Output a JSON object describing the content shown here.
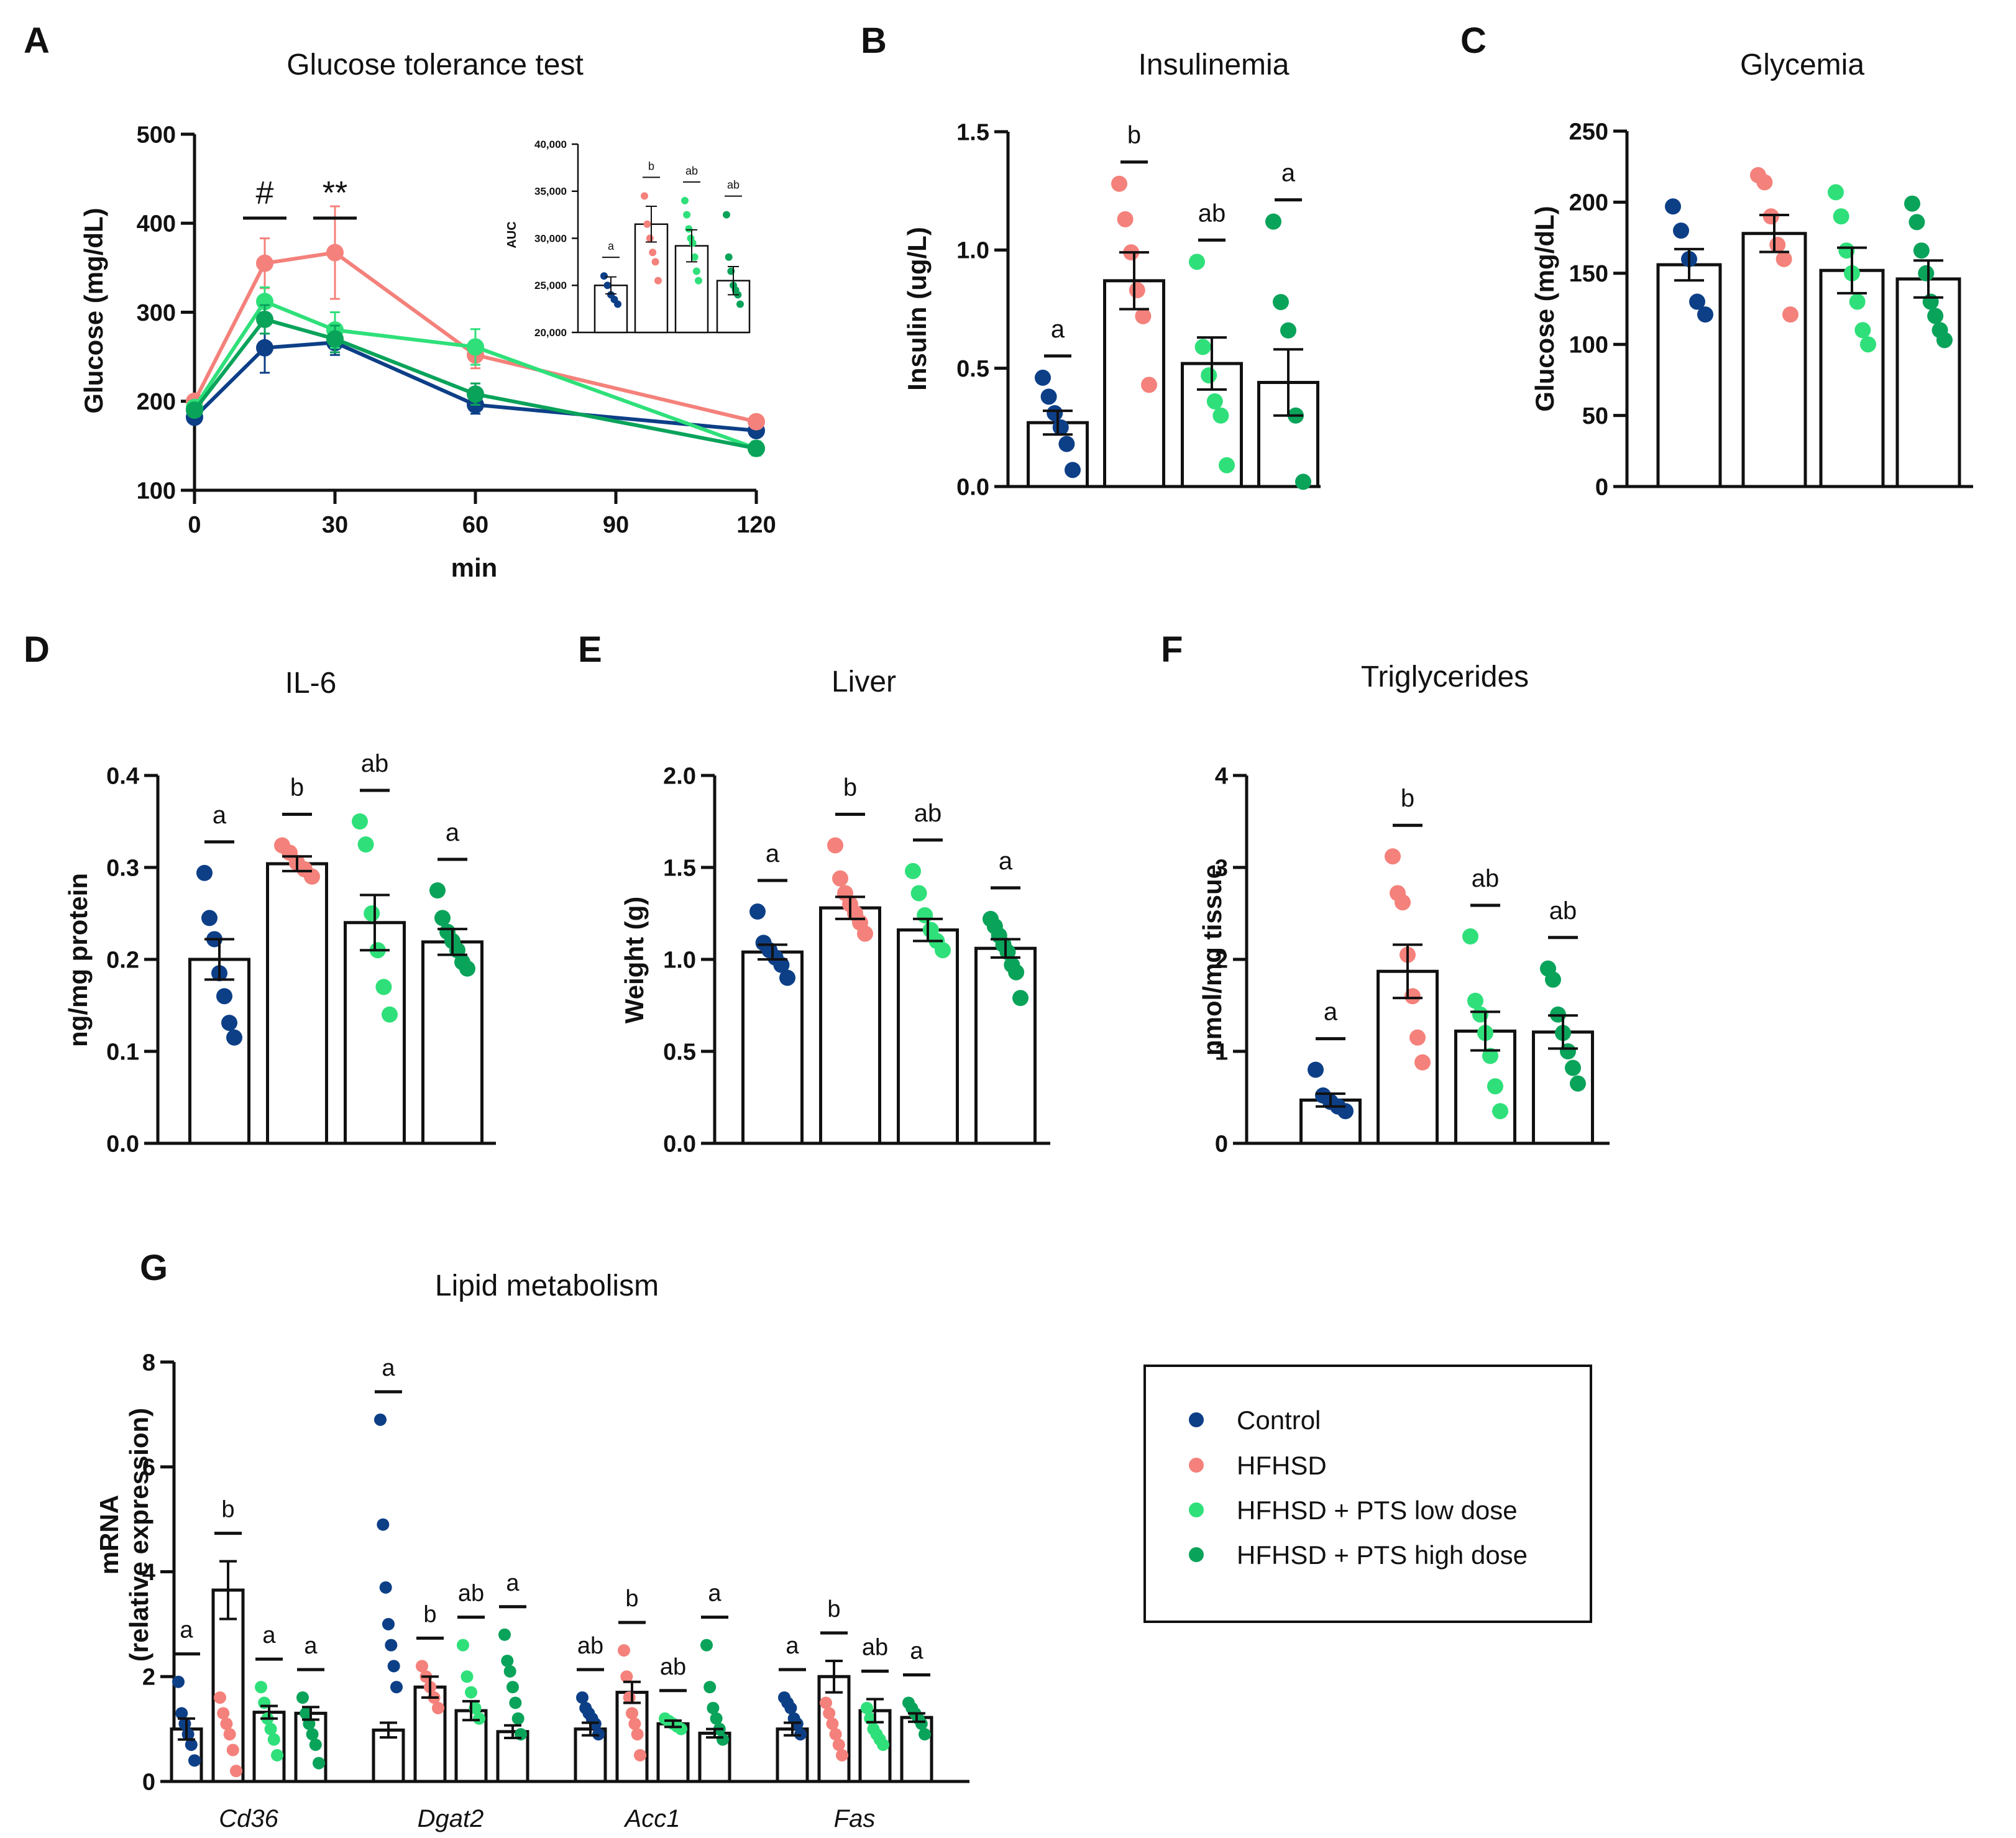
{
  "groups": [
    {
      "name": "Control",
      "color": "#0d3f87"
    },
    {
      "name": "HFHSD",
      "color": "#f4817b"
    },
    {
      "name": "HFHSD + PTS low dose",
      "color": "#2fe07a"
    },
    {
      "name": "HFHSD + PTS high dose",
      "color": "#0aa35a"
    }
  ],
  "chart_data": [
    {
      "id": "A",
      "letter": "A",
      "type": "line",
      "title": "Glucose tolerance test",
      "xlabel": "min",
      "ylabel": "Glucose (mg/dL)",
      "ylim": [
        100,
        500
      ],
      "yticks": [
        100,
        200,
        300,
        400,
        500
      ],
      "ytick_labels": [
        "100",
        "200",
        "300",
        "400",
        "500"
      ],
      "xlim": [
        0,
        120
      ],
      "xticks": [
        0,
        30,
        60,
        90,
        120
      ],
      "xtick_labels": [
        "0",
        "30",
        "60",
        "90",
        "120"
      ],
      "x": [
        0,
        15,
        30,
        60,
        120
      ],
      "series": [
        {
          "name": "Control",
          "values": [
            182,
            260,
            266,
            196,
            167
          ],
          "sem": [
            5,
            28,
            14,
            10,
            5
          ]
        },
        {
          "name": "HFHSD",
          "values": [
            200,
            355,
            367,
            252,
            177
          ],
          "sem": [
            6,
            28,
            52,
            15,
            6
          ]
        },
        {
          "name": "HFHSD + PTS low dose",
          "values": [
            193,
            312,
            280,
            261,
            147
          ],
          "sem": [
            6,
            16,
            20,
            20,
            8
          ]
        },
        {
          "name": "HFHSD + PTS high dose",
          "values": [
            190,
            292,
            270,
            208,
            147
          ],
          "sem": [
            6,
            16,
            15,
            12,
            6
          ]
        }
      ],
      "annotations": [
        {
          "x": 15,
          "label": "#"
        },
        {
          "x": 30,
          "label": "**"
        }
      ]
    },
    {
      "id": "A-inset",
      "type": "bar",
      "ylabel": "AUC",
      "ylim": [
        20000,
        40000
      ],
      "yticks": [
        20000,
        25000,
        30000,
        35000,
        40000
      ],
      "ytick_labels": [
        "20,000",
        "25,000",
        "30,000",
        "35,000",
        "40,000"
      ],
      "categories": [
        "Control",
        "HFHSD",
        "HFHSD + PTS low dose",
        "HFHSD + PTS high dose"
      ],
      "values": [
        25000,
        31500,
        29200,
        25500
      ],
      "sem": [
        900,
        1900,
        1700,
        1500
      ],
      "points": [
        [
          26000,
          25000,
          24000,
          23500,
          23000
        ],
        [
          34500,
          31500,
          30000,
          28500,
          27500,
          25500
        ],
        [
          34000,
          32500,
          31000,
          30000,
          29500,
          28000,
          26500,
          25500
        ],
        [
          32500,
          28000,
          26500,
          25000,
          24500,
          24000,
          23000
        ]
      ],
      "letters": [
        "a",
        "b",
        "ab",
        "ab"
      ]
    },
    {
      "id": "B",
      "letter": "B",
      "type": "bar",
      "title": "Insulinemia",
      "ylabel": "Insulin (ug/L)",
      "ylim": [
        0,
        1.5
      ],
      "yticks": [
        0,
        0.5,
        1.0,
        1.5
      ],
      "ytick_labels": [
        "0.0",
        "0.5",
        "1.0",
        "1.5"
      ],
      "categories": [
        "Control",
        "HFHSD",
        "HFHSD + PTS low dose",
        "HFHSD + PTS high dose"
      ],
      "values": [
        0.27,
        0.87,
        0.52,
        0.44
      ],
      "sem": [
        0.05,
        0.12,
        0.11,
        0.14
      ],
      "points": [
        [
          0.46,
          0.38,
          0.31,
          0.25,
          0.18,
          0.07
        ],
        [
          1.28,
          1.13,
          0.99,
          0.83,
          0.72,
          0.43
        ],
        [
          0.95,
          0.59,
          0.47,
          0.36,
          0.3,
          0.09
        ],
        [
          1.12,
          0.78,
          0.66,
          0.3,
          0.02
        ]
      ],
      "letters": [
        "a",
        "b",
        "ab",
        "a"
      ]
    },
    {
      "id": "C",
      "letter": "C",
      "type": "bar",
      "title": "Glycemia",
      "ylabel": "Glucose (mg/dL)",
      "ylim": [
        0,
        250
      ],
      "yticks": [
        0,
        50,
        100,
        150,
        200,
        250
      ],
      "ytick_labels": [
        "0",
        "50",
        "100",
        "150",
        "200",
        "250"
      ],
      "categories": [
        "Control",
        "HFHSD",
        "HFHSD + PTS low dose",
        "HFHSD + PTS high dose"
      ],
      "values": [
        156,
        178,
        152,
        146
      ],
      "sem": [
        11,
        13,
        16,
        13
      ],
      "points": [
        [
          197,
          180,
          160,
          130,
          121
        ],
        [
          219,
          214,
          190,
          170,
          160,
          121
        ],
        [
          207,
          190,
          166,
          150,
          130,
          110,
          100
        ],
        [
          199,
          186,
          166,
          150,
          130,
          120,
          110,
          103
        ]
      ],
      "letters": [
        "",
        "",
        "",
        ""
      ]
    },
    {
      "id": "D",
      "letter": "D",
      "type": "bar",
      "title": "IL-6",
      "ylabel": "ng/mg protein",
      "ylim": [
        0,
        0.4
      ],
      "yticks": [
        0,
        0.1,
        0.2,
        0.3,
        0.4
      ],
      "ytick_labels": [
        "0.0",
        "0.1",
        "0.2",
        "0.3",
        "0.4"
      ],
      "categories": [
        "Control",
        "HFHSD",
        "HFHSD + PTS low dose",
        "HFHSD + PTS high dose"
      ],
      "values": [
        0.2,
        0.304,
        0.24,
        0.219
      ],
      "sem": [
        0.022,
        0.008,
        0.03,
        0.014
      ],
      "points": [
        [
          0.294,
          0.245,
          0.222,
          0.185,
          0.16,
          0.131,
          0.115
        ],
        [
          0.324,
          0.316,
          0.305,
          0.298,
          0.29
        ],
        [
          0.35,
          0.325,
          0.25,
          0.21,
          0.17,
          0.14
        ],
        [
          0.275,
          0.245,
          0.23,
          0.22,
          0.21,
          0.197,
          0.19
        ]
      ],
      "letters": [
        "a",
        "b",
        "ab",
        "a"
      ]
    },
    {
      "id": "E",
      "letter": "E",
      "type": "bar",
      "title": "Liver",
      "ylabel": "Weight (g)",
      "ylim": [
        0,
        2.0
      ],
      "yticks": [
        0,
        0.5,
        1.0,
        1.5,
        2.0
      ],
      "ytick_labels": [
        "0.0",
        "0.5",
        "1.0",
        "1.5",
        "2.0"
      ],
      "categories": [
        "Control",
        "HFHSD",
        "HFHSD + PTS low dose",
        "HFHSD + PTS high dose"
      ],
      "values": [
        1.04,
        1.28,
        1.16,
        1.06
      ],
      "sem": [
        0.04,
        0.06,
        0.06,
        0.05
      ],
      "points": [
        [
          1.26,
          1.09,
          1.05,
          1.01,
          0.97,
          0.9
        ],
        [
          1.62,
          1.44,
          1.36,
          1.3,
          1.25,
          1.2,
          1.14
        ],
        [
          1.48,
          1.36,
          1.24,
          1.16,
          1.1,
          1.05
        ],
        [
          1.22,
          1.18,
          1.13,
          1.08,
          1.04,
          0.97,
          0.93,
          0.79
        ]
      ],
      "letters": [
        "a",
        "b",
        "ab",
        "a"
      ]
    },
    {
      "id": "F",
      "letter": "F",
      "type": "bar",
      "title": "Triglycerides",
      "ylabel": "nmol/mg tissue",
      "ylim": [
        0,
        4
      ],
      "yticks": [
        0,
        1,
        2,
        3,
        4
      ],
      "ytick_labels": [
        "0",
        "1",
        "2",
        "3",
        "4"
      ],
      "categories": [
        "Control",
        "HFHSD",
        "HFHSD + PTS low dose",
        "HFHSD + PTS high dose"
      ],
      "values": [
        0.47,
        1.87,
        1.22,
        1.21
      ],
      "sem": [
        0.07,
        0.29,
        0.21,
        0.18
      ],
      "points": [
        [
          0.8,
          0.52,
          0.45,
          0.4,
          0.35
        ],
        [
          3.12,
          2.72,
          2.62,
          2.05,
          1.6,
          1.15,
          0.88
        ],
        [
          2.25,
          1.55,
          1.4,
          1.2,
          0.95,
          0.62,
          0.35
        ],
        [
          1.9,
          1.78,
          1.4,
          1.2,
          1.0,
          0.82,
          0.65
        ]
      ],
      "letters": [
        "a",
        "b",
        "ab",
        "ab"
      ]
    },
    {
      "id": "G",
      "letter": "G",
      "type": "bar",
      "title": "Lipid metabolism",
      "ylabel_lines": [
        "mRNA",
        "(relative expression)"
      ],
      "ylim": [
        0,
        8
      ],
      "yticks": [
        0,
        2,
        4,
        6,
        8
      ],
      "ytick_labels": [
        "0",
        "2",
        "4",
        "6",
        "8"
      ],
      "categories": [
        "Cd36",
        "Dgat2",
        "Acc1",
        "Fas"
      ],
      "series": [
        {
          "name": "Control",
          "values": [
            1.0,
            0.98,
            1.0,
            1.0
          ],
          "sem": [
            0.2,
            0.14,
            0.12,
            0.12
          ]
        },
        {
          "name": "HFHSD",
          "values": [
            3.65,
            1.8,
            1.7,
            2.0
          ],
          "sem": [
            0.55,
            0.2,
            0.2,
            0.3
          ]
        },
        {
          "name": "HFHSD + PTS low dose",
          "values": [
            1.32,
            1.35,
            1.1,
            1.35
          ],
          "sem": [
            0.12,
            0.18,
            0.06,
            0.22
          ]
        },
        {
          "name": "HFHSD + PTS high dose",
          "values": [
            1.3,
            0.95,
            0.92,
            1.22
          ],
          "sem": [
            0.12,
            0.12,
            0.08,
            0.08
          ]
        }
      ],
      "points": [
        [
          [
            1.9,
            1.3,
            1.1,
            0.9,
            0.7,
            0.4
          ],
          [
            1.6,
            1.3,
            1.1,
            0.9,
            0.6,
            0.2
          ],
          [
            1.8,
            1.5,
            1.2,
            1.0,
            0.8,
            0.5
          ],
          [
            1.6,
            1.3,
            1.1,
            0.9,
            0.7,
            0.35
          ]
        ],
        [
          [
            6.9,
            4.9,
            3.7,
            3.0,
            2.6,
            2.2,
            1.8
          ],
          [
            2.2,
            2.0,
            1.8,
            1.6,
            1.4
          ],
          [
            2.6,
            2.0,
            1.7,
            1.4,
            1.2
          ],
          [
            2.8,
            2.3,
            2.1,
            1.8,
            1.5,
            1.2,
            0.9
          ]
        ],
        [
          [
            1.6,
            1.4,
            1.3,
            1.2,
            1.1,
            0.9
          ],
          [
            2.5,
            2.0,
            1.6,
            1.3,
            1.1,
            0.9,
            0.5
          ],
          [
            1.2,
            1.15,
            1.1,
            1.05,
            1.0
          ],
          [
            2.6,
            1.8,
            1.4,
            1.2,
            1.0,
            0.8
          ]
        ],
        [
          [
            1.6,
            1.5,
            1.4,
            1.2,
            1.1,
            0.9
          ],
          [
            1.5,
            1.3,
            1.1,
            0.9,
            0.7,
            0.5
          ],
          [
            1.4,
            1.2,
            1.0,
            0.9,
            0.8,
            0.7
          ],
          [
            1.5,
            1.4,
            1.3,
            1.2,
            1.1,
            0.9
          ]
        ]
      ],
      "letters": [
        [
          "a",
          "b",
          "a",
          "a"
        ],
        [
          "a",
          "b",
          "ab",
          "a"
        ],
        [
          "ab",
          "b",
          "ab",
          "a"
        ],
        [
          "a",
          "b",
          "ab",
          "a"
        ]
      ]
    }
  ]
}
